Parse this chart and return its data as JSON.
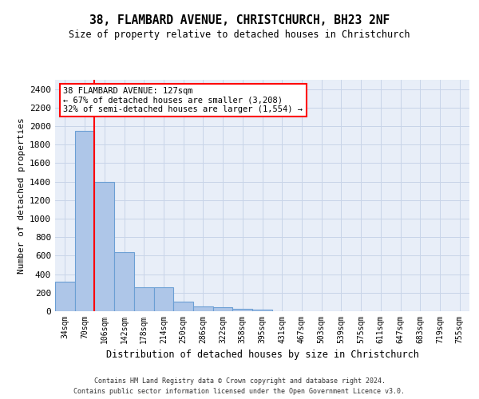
{
  "title": "38, FLAMBARD AVENUE, CHRISTCHURCH, BH23 2NF",
  "subtitle": "Size of property relative to detached houses in Christchurch",
  "xlabel": "Distribution of detached houses by size in Christchurch",
  "ylabel": "Number of detached properties",
  "bar_categories": [
    "34sqm",
    "70sqm",
    "106sqm",
    "142sqm",
    "178sqm",
    "214sqm",
    "250sqm",
    "286sqm",
    "322sqm",
    "358sqm",
    "395sqm",
    "431sqm",
    "467sqm",
    "503sqm",
    "539sqm",
    "575sqm",
    "611sqm",
    "647sqm",
    "683sqm",
    "719sqm",
    "755sqm"
  ],
  "bar_values": [
    320,
    1950,
    1400,
    640,
    260,
    260,
    100,
    50,
    40,
    30,
    20,
    0,
    0,
    0,
    0,
    0,
    0,
    0,
    0,
    0,
    0
  ],
  "bar_color": "#aec6e8",
  "bar_edge_color": "#6b9fd4",
  "ylim": [
    0,
    2500
  ],
  "yticks": [
    0,
    200,
    400,
    600,
    800,
    1000,
    1200,
    1400,
    1600,
    1800,
    2000,
    2200,
    2400
  ],
  "grid_color": "#c8d4e8",
  "background_color": "#e8eef8",
  "red_line_x": 1.5,
  "annotation_text": "38 FLAMBARD AVENUE: 127sqm\n← 67% of detached houses are smaller (3,208)\n32% of semi-detached houses are larger (1,554) →",
  "annotation_box_color": "white",
  "annotation_box_edge": "red",
  "footer_line1": "Contains HM Land Registry data © Crown copyright and database right 2024.",
  "footer_line2": "Contains public sector information licensed under the Open Government Licence v3.0."
}
